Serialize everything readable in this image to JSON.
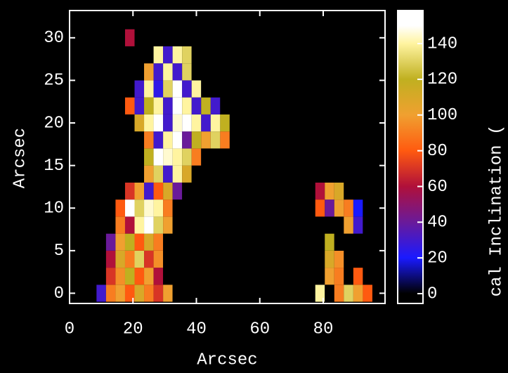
{
  "chart_data": {
    "type": "heatmap",
    "xlabel": "Arcsec",
    "ylabel": "Arcsec",
    "colorbar_label": "cal Inclination (",
    "x": [
      10,
      13,
      16,
      19,
      22,
      25,
      28,
      31,
      34,
      37,
      40,
      43,
      46,
      49,
      52,
      55,
      58,
      61,
      64,
      67,
      70,
      73,
      76,
      79,
      82,
      85,
      88,
      91,
      94
    ],
    "y": [
      0,
      2,
      4,
      6,
      8,
      10,
      12,
      14,
      16,
      18,
      20,
      22,
      24,
      26,
      28,
      30
    ],
    "z": [
      [
        30,
        90,
        100,
        80,
        110,
        90,
        70,
        100,
        0,
        0,
        0,
        0,
        0,
        0,
        0,
        0,
        0,
        0,
        0,
        0,
        0,
        0,
        0,
        140,
        0,
        90,
        130,
        100,
        80
      ],
      [
        0,
        70,
        95,
        120,
        80,
        100,
        60,
        0,
        0,
        0,
        0,
        0,
        0,
        0,
        0,
        0,
        0,
        0,
        0,
        0,
        0,
        0,
        0,
        0,
        100,
        90,
        0,
        80,
        0
      ],
      [
        0,
        60,
        110,
        90,
        130,
        70,
        95,
        0,
        0,
        0,
        0,
        0,
        0,
        0,
        0,
        0,
        0,
        0,
        0,
        0,
        0,
        0,
        0,
        0,
        110,
        95,
        0,
        0,
        0
      ],
      [
        0,
        40,
        100,
        120,
        80,
        110,
        90,
        0,
        0,
        0,
        0,
        0,
        0,
        0,
        0,
        0,
        0,
        0,
        0,
        0,
        0,
        0,
        0,
        0,
        120,
        0,
        0,
        0,
        0
      ],
      [
        0,
        0,
        90,
        60,
        140,
        150,
        130,
        100,
        0,
        0,
        0,
        0,
        0,
        0,
        0,
        0,
        0,
        0,
        0,
        0,
        0,
        0,
        0,
        0,
        0,
        0,
        100,
        30,
        0
      ],
      [
        0,
        0,
        80,
        150,
        130,
        145,
        140,
        90,
        0,
        0,
        0,
        0,
        0,
        0,
        0,
        0,
        0,
        0,
        0,
        0,
        0,
        0,
        0,
        80,
        40,
        100,
        90,
        20,
        0
      ],
      [
        0,
        0,
        0,
        70,
        100,
        30,
        80,
        110,
        40,
        0,
        0,
        0,
        0,
        0,
        0,
        0,
        0,
        0,
        0,
        0,
        0,
        0,
        0,
        60,
        100,
        110,
        0,
        0,
        0
      ],
      [
        0,
        0,
        0,
        0,
        0,
        100,
        130,
        30,
        140,
        110,
        0,
        0,
        0,
        0,
        0,
        0,
        0,
        0,
        0,
        0,
        0,
        0,
        0,
        0,
        0,
        0,
        0,
        0,
        0
      ],
      [
        0,
        0,
        0,
        0,
        0,
        120,
        150,
        145,
        140,
        130,
        90,
        0,
        0,
        0,
        0,
        0,
        0,
        0,
        0,
        0,
        0,
        0,
        0,
        0,
        0,
        0,
        0,
        0,
        0
      ],
      [
        0,
        0,
        0,
        0,
        0,
        90,
        30,
        140,
        150,
        40,
        120,
        100,
        130,
        90,
        0,
        0,
        0,
        0,
        0,
        0,
        0,
        0,
        0,
        0,
        0,
        0,
        0,
        0,
        0
      ],
      [
        0,
        0,
        0,
        0,
        110,
        140,
        150,
        30,
        145,
        150,
        140,
        30,
        140,
        120,
        0,
        0,
        0,
        0,
        0,
        0,
        0,
        0,
        0,
        0,
        0,
        0,
        0,
        0,
        0
      ],
      [
        0,
        0,
        0,
        80,
        30,
        120,
        140,
        30,
        150,
        140,
        30,
        120,
        30,
        0,
        0,
        0,
        0,
        0,
        0,
        0,
        0,
        0,
        0,
        0,
        0,
        0,
        0,
        0,
        0
      ],
      [
        0,
        0,
        0,
        0,
        30,
        140,
        25,
        130,
        150,
        30,
        140,
        0,
        0,
        0,
        0,
        0,
        0,
        0,
        0,
        0,
        0,
        0,
        0,
        0,
        0,
        0,
        0,
        0,
        0
      ],
      [
        0,
        0,
        0,
        0,
        0,
        100,
        30,
        140,
        30,
        130,
        0,
        0,
        0,
        0,
        0,
        0,
        0,
        0,
        0,
        0,
        0,
        0,
        0,
        0,
        0,
        0,
        0,
        0,
        0
      ],
      [
        0,
        0,
        0,
        0,
        0,
        0,
        140,
        30,
        140,
        130,
        0,
        0,
        0,
        0,
        0,
        0,
        0,
        0,
        0,
        0,
        0,
        0,
        0,
        0,
        0,
        0,
        0,
        0,
        0
      ],
      [
        0,
        0,
        0,
        60,
        0,
        0,
        0,
        0,
        0,
        0,
        0,
        0,
        0,
        0,
        0,
        0,
        0,
        0,
        0,
        0,
        0,
        0,
        0,
        0,
        0,
        0,
        0,
        0,
        0
      ]
    ],
    "xlim": [
      0,
      99.5
    ],
    "ylim": [
      -1.2,
      33.2
    ],
    "xticks": [
      0,
      20,
      40,
      60,
      80
    ],
    "yticks": [
      0,
      5,
      10,
      15,
      20,
      25,
      30
    ],
    "clim": [
      -5.5,
      158.5
    ],
    "cticks": [
      0,
      20,
      40,
      60,
      80,
      100,
      120,
      140
    ],
    "colorscale": [
      [
        0,
        "#000000"
      ],
      [
        20,
        "#1a1aff"
      ],
      [
        40,
        "#6a1a9a"
      ],
      [
        60,
        "#b0103a"
      ],
      [
        80,
        "#ff5a10"
      ],
      [
        100,
        "#f0a030"
      ],
      [
        120,
        "#c0b020"
      ],
      [
        140,
        "#fff4a0"
      ],
      [
        150,
        "#ffffff"
      ]
    ]
  }
}
